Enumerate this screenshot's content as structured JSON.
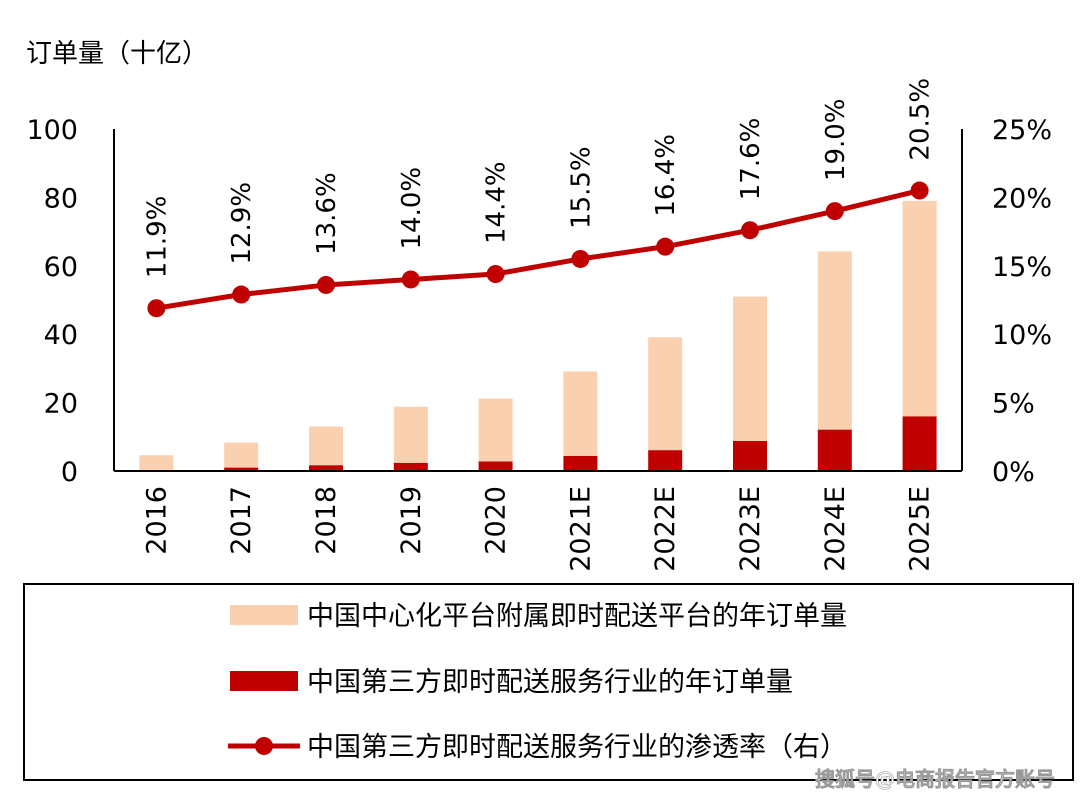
{
  "chart_data": {
    "type": "bar",
    "ylabel": "订单量（十亿）",
    "categories": [
      "2016",
      "2017",
      "2018",
      "2019",
      "2020",
      "2021E",
      "2022E",
      "2023E",
      "2024E",
      "2025E"
    ],
    "ylim": [
      0,
      100
    ],
    "yticks": [
      "0",
      "20",
      "40",
      "60",
      "80",
      "100"
    ],
    "y2lim": [
      0,
      25
    ],
    "y2ticks": [
      "0%",
      "5%",
      "10%",
      "15%",
      "20%",
      "25%"
    ],
    "series": [
      {
        "name": "中国中心化平台附属即时配送平台的年订单量",
        "kind": "stacked-bar",
        "color": "#f9d0b0",
        "values": [
          4.6,
          7.3,
          11.3,
          16.4,
          18.4,
          24.7,
          33.0,
          42.2,
          52.1,
          63.0
        ]
      },
      {
        "name": "中国第三方即时配送服务行业的年订单量",
        "kind": "stacked-bar",
        "color": "#c00000",
        "values": [
          0.0,
          1.0,
          1.7,
          2.4,
          2.8,
          4.4,
          6.1,
          8.8,
          12.1,
          16.0
        ]
      },
      {
        "name": "中国第三方即时配送服务行业的渗透率（右）",
        "kind": "line",
        "axis": "right",
        "color": "#c00000",
        "values": [
          11.9,
          12.9,
          13.6,
          14.0,
          14.4,
          15.5,
          16.4,
          17.6,
          19.0,
          20.5
        ],
        "labels": [
          "11.9%",
          "12.9%",
          "13.6%",
          "14.0%",
          "14.4%",
          "15.5%",
          "16.4%",
          "17.6%",
          "19.0%",
          "20.5%"
        ]
      }
    ],
    "grid": false,
    "legend_position": "bottom"
  },
  "watermark": "搜狐号@电商报告官方账号"
}
